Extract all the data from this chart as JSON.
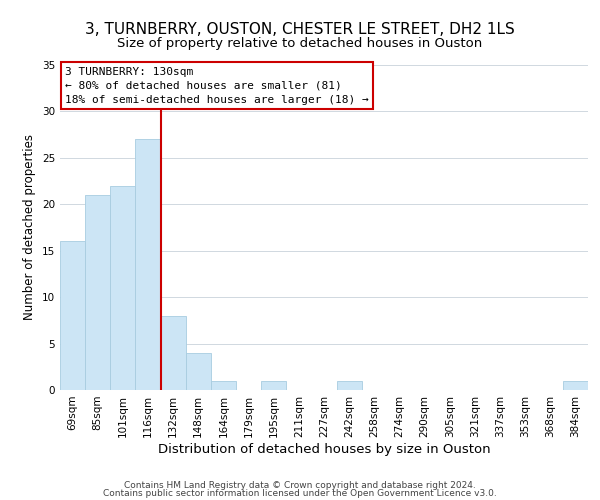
{
  "title": "3, TURNBERRY, OUSTON, CHESTER LE STREET, DH2 1LS",
  "subtitle": "Size of property relative to detached houses in Ouston",
  "xlabel": "Distribution of detached houses by size in Ouston",
  "ylabel": "Number of detached properties",
  "categories": [
    "69sqm",
    "85sqm",
    "101sqm",
    "116sqm",
    "132sqm",
    "148sqm",
    "164sqm",
    "179sqm",
    "195sqm",
    "211sqm",
    "227sqm",
    "242sqm",
    "258sqm",
    "274sqm",
    "290sqm",
    "305sqm",
    "321sqm",
    "337sqm",
    "353sqm",
    "368sqm",
    "384sqm"
  ],
  "values": [
    16,
    21,
    22,
    27,
    8,
    4,
    1,
    0,
    1,
    0,
    0,
    1,
    0,
    0,
    0,
    0,
    0,
    0,
    0,
    0,
    1
  ],
  "bar_color": "#cce5f5",
  "bar_edge_color": "#a8cce0",
  "marker_line_color": "#cc0000",
  "annotation_title": "3 TURNBERRY: 130sqm",
  "annotation_line1": "← 80% of detached houses are smaller (81)",
  "annotation_line2": "18% of semi-detached houses are larger (18) →",
  "annotation_box_color": "#ffffff",
  "annotation_box_edge_color": "#cc0000",
  "ylim": [
    0,
    35
  ],
  "yticks": [
    0,
    5,
    10,
    15,
    20,
    25,
    30,
    35
  ],
  "footnote1": "Contains HM Land Registry data © Crown copyright and database right 2024.",
  "footnote2": "Contains public sector information licensed under the Open Government Licence v3.0.",
  "title_fontsize": 11,
  "xlabel_fontsize": 9.5,
  "ylabel_fontsize": 8.5,
  "tick_fontsize": 7.5,
  "footnote_fontsize": 6.5
}
